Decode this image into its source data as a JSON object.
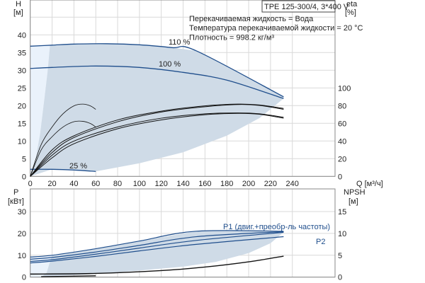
{
  "chart_data": [
    {
      "type": "line",
      "title": "TPE 125-300/4, 3*400 V",
      "info": [
        "Перекачиваемая жидкость = Вода",
        "Температура перекачиваемой жидкости = 20 °C",
        "Плотность = 998.2 кг/м³"
      ],
      "ylabel": "H",
      "yunit": "[м]",
      "y2label": "eta",
      "y2unit": "[%]",
      "xlabel": "Q [м³/ч]",
      "xlim": [
        0,
        260
      ],
      "ylim": [
        0,
        50
      ],
      "y2lim": [
        0,
        200
      ],
      "xticks": [
        "0",
        "20",
        "40",
        "60",
        "80",
        "100",
        "120",
        "140",
        "160",
        "180",
        "200",
        "220",
        "240"
      ],
      "yticks": [
        "0",
        "5",
        "10",
        "15",
        "20",
        "25",
        "30",
        "35",
        "40"
      ],
      "y2ticks": [
        "0",
        "20",
        "40",
        "60",
        "80",
        "100"
      ],
      "series": [
        {
          "name": "110 %",
          "kind": "H",
          "points": [
            [
              0,
              36.8
            ],
            [
              20,
              37.1
            ],
            [
              40,
              37.4
            ],
            [
              70,
              37.5
            ],
            [
              100,
              37.2
            ],
            [
              130,
              36.4
            ],
            [
              152,
              35.5
            ],
            [
              232,
              22.5
            ]
          ]
        },
        {
          "name": "100 %",
          "kind": "H",
          "points": [
            [
              0,
              30.5
            ],
            [
              20,
              30.8
            ],
            [
              60,
              31.2
            ],
            [
              100,
              30.8
            ],
            [
              140,
              29.4
            ],
            [
              180,
              27.2
            ],
            [
              232,
              22
            ]
          ]
        },
        {
          "name": "25 %",
          "kind": "H",
          "points": [
            [
              0,
              2
            ],
            [
              20,
              2
            ],
            [
              40,
              1.8
            ],
            [
              60,
              1.4
            ]
          ]
        }
      ],
      "eta_series": [
        {
          "points": [
            [
              0,
              0
            ],
            [
              20,
              30
            ],
            [
              40,
              46
            ],
            [
              80,
              64
            ],
            [
              120,
              74
            ],
            [
              160,
              80
            ],
            [
              190,
              82
            ],
            [
              210,
              81
            ],
            [
              232,
              77
            ]
          ]
        },
        {
          "points": [
            [
              0,
              0
            ],
            [
              20,
              27
            ],
            [
              40,
              44
            ],
            [
              80,
              62
            ],
            [
              120,
              73
            ],
            [
              160,
              79
            ],
            [
              190,
              81.5
            ],
            [
              210,
              80.5
            ],
            [
              232,
              76
            ]
          ]
        },
        {
          "points": [
            [
              0,
              0
            ],
            [
              20,
              24
            ],
            [
              40,
              40
            ],
            [
              80,
              56
            ],
            [
              120,
              66
            ],
            [
              160,
              71
            ],
            [
              190,
              72
            ],
            [
              210,
              71
            ],
            [
              232,
              67
            ]
          ]
        },
        {
          "points": [
            [
              0,
              0
            ],
            [
              20,
              21
            ],
            [
              40,
              37
            ],
            [
              80,
              54
            ],
            [
              120,
              64
            ],
            [
              160,
              70
            ],
            [
              190,
              71.5
            ],
            [
              210,
              70.5
            ],
            [
              232,
              66
            ]
          ]
        },
        {
          "points": [
            [
              0,
              0
            ],
            [
              10,
              30
            ],
            [
              20,
              45
            ],
            [
              30,
              56
            ],
            [
              40,
              62
            ],
            [
              48,
              62.5
            ],
            [
              55,
              60
            ],
            [
              60,
              56
            ]
          ]
        },
        {
          "points": [
            [
              0,
              0
            ],
            [
              10,
              36
            ],
            [
              20,
              56
            ],
            [
              30,
              71
            ],
            [
              40,
              80
            ],
            [
              48,
              82
            ],
            [
              55,
              80
            ],
            [
              60,
              76
            ]
          ]
        }
      ],
      "region_lower": [
        [
          60,
          1.4
        ],
        [
          100,
          3.7
        ],
        [
          140,
          6.8
        ],
        [
          180,
          11.5
        ],
        [
          210,
          16.5
        ],
        [
          232,
          22
        ]
      ],
      "region_left": [
        [
          0,
          0
        ],
        [
          5,
          5
        ],
        [
          9,
          12
        ],
        [
          13,
          22
        ],
        [
          16,
          30
        ],
        [
          18,
          37
        ]
      ]
    },
    {
      "type": "line",
      "ylabel": "P",
      "yunit": "[кВт]",
      "y2label": "NPSH",
      "y2unit": "[м]",
      "xlim": [
        0,
        260
      ],
      "ylim": [
        0,
        40
      ],
      "y2lim": [
        0,
        20
      ],
      "yticks": [
        "0",
        "10",
        "20",
        "30"
      ],
      "y2ticks": [
        "0",
        "5",
        "10",
        "15"
      ],
      "labels": {
        "p1": "P1 (двиг.+преобр-ль частоты)",
        "p2": "P2"
      },
      "series": [
        {
          "name": "P1 110 %",
          "points": [
            [
              0,
              9.2
            ],
            [
              20,
              10
            ],
            [
              60,
              13
            ],
            [
              100,
              16.5
            ],
            [
              152,
              21
            ],
            [
              232,
              21
            ]
          ]
        },
        {
          "name": "P1 100 %",
          "points": [
            [
              0,
              8.2
            ],
            [
              20,
              9
            ],
            [
              60,
              11.5
            ],
            [
              100,
              14.5
            ],
            [
              152,
              18.5
            ],
            [
              232,
              20.8
            ]
          ]
        },
        {
          "name": "P2 110 %",
          "points": [
            [
              0,
              7.2
            ],
            [
              20,
              8
            ],
            [
              60,
              10.5
            ],
            [
              100,
              13.3
            ],
            [
              152,
              16.8
            ],
            [
              232,
              20.5
            ]
          ]
        },
        {
          "name": "P2 100 %",
          "points": [
            [
              0,
              6.5
            ],
            [
              20,
              7.3
            ],
            [
              60,
              9.5
            ],
            [
              100,
              12
            ],
            [
              152,
              15
            ],
            [
              232,
              18.5
            ]
          ]
        }
      ],
      "npsh_series": [
        {
          "points": [
            [
              0,
              0.7
            ],
            [
              60,
              0.85
            ],
            [
              120,
              1.5
            ],
            [
              160,
              2.3
            ],
            [
              200,
              3.5
            ],
            [
              232,
              4.8
            ]
          ]
        },
        {
          "points": [
            [
              10,
              0.1
            ],
            [
              60,
              0.3
            ]
          ]
        }
      ],
      "region_lower": [
        [
          20,
          0.5
        ],
        [
          60,
          1.5
        ],
        [
          100,
          3
        ],
        [
          140,
          4.8
        ],
        [
          170,
          7
        ],
        [
          200,
          11
        ],
        [
          220,
          15.5
        ],
        [
          232,
          20.5
        ]
      ],
      "region_left": [
        [
          0,
          0
        ],
        [
          10,
          0
        ],
        [
          15,
          2
        ],
        [
          18,
          7
        ],
        [
          20,
          10
        ]
      ]
    }
  ],
  "colors": {
    "curve": "#1f4e8c",
    "region": "#cfdbe7",
    "region_light": "#eaf2fb",
    "grid": "#d9d9d9",
    "eta": "#111111"
  }
}
